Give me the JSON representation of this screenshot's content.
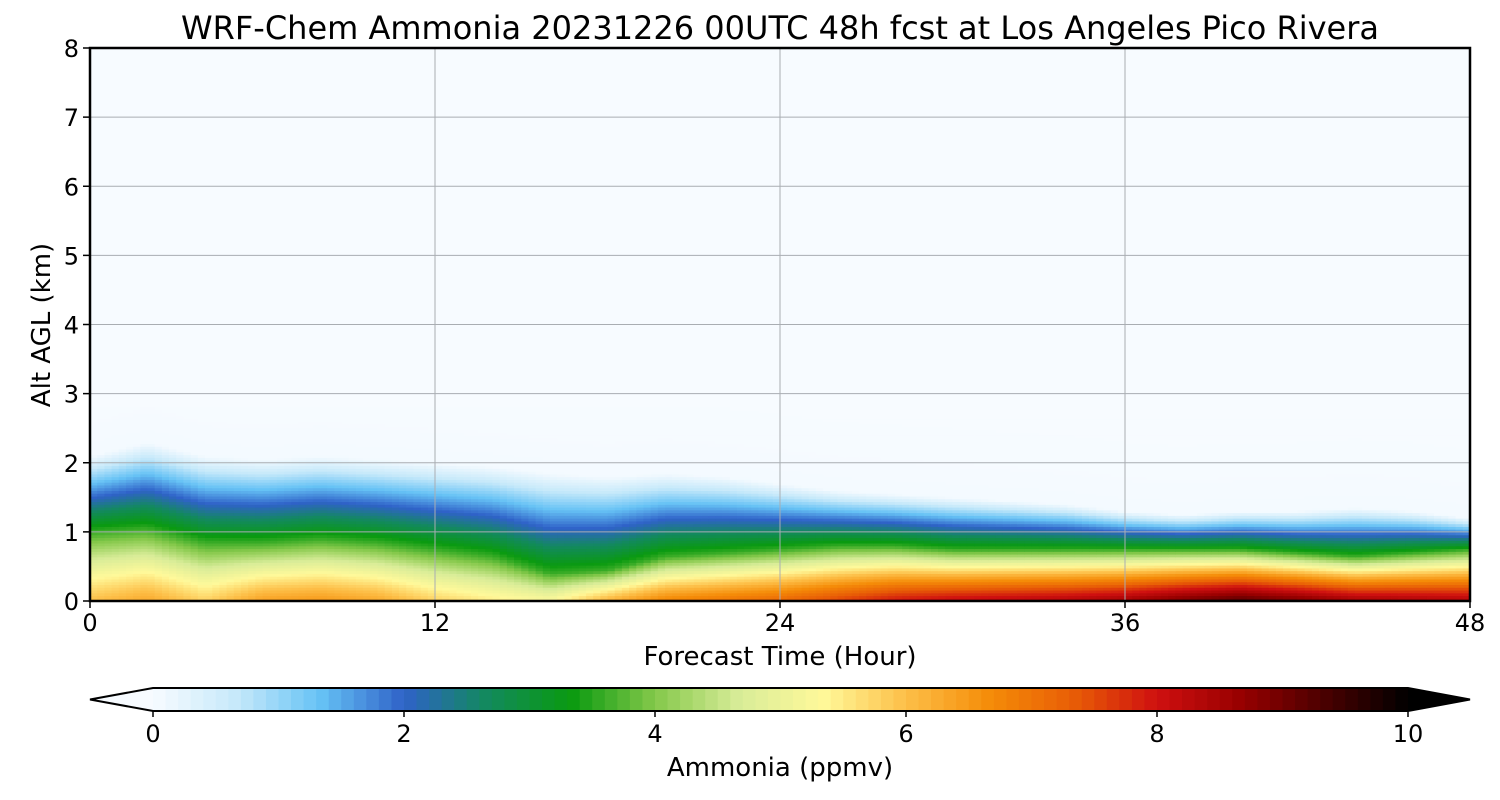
{
  "chart_data": {
    "type": "heatmap",
    "title": "WRF-Chem Ammonia  20231226 00UTC 48h fcst at Los Angeles Pico Rivera",
    "xlabel": "Forecast Time (Hour)",
    "ylabel": "Alt AGL (km)",
    "xlim": [
      0,
      48
    ],
    "ylim": [
      0,
      8
    ],
    "xticks": [
      0,
      12,
      24,
      36,
      48
    ],
    "yticks": [
      0,
      1,
      2,
      3,
      4,
      5,
      6,
      7,
      8
    ],
    "grid": true,
    "colorbar": {
      "label": "Ammonia  (ppmv)",
      "range": [
        0,
        10
      ],
      "ticks": [
        0,
        2,
        4,
        6,
        8,
        10
      ],
      "extend": "both",
      "colors": [
        "#f7fbff",
        "#c6e9fa",
        "#66c2f5",
        "#2f62c8",
        "#128a5c",
        "#0a9a10",
        "#84c84a",
        "#d8ec98",
        "#fff99a",
        "#fdbf48",
        "#f58c08",
        "#e85d06",
        "#cf1010",
        "#980000",
        "#4a0000",
        "#000000"
      ]
    },
    "profile_hours": [
      0,
      2,
      4,
      6,
      8,
      10,
      12,
      14,
      16,
      18,
      20,
      22,
      24,
      26,
      28,
      30,
      32,
      34,
      36,
      38,
      40,
      42,
      44,
      46,
      48
    ],
    "surface_ammonia_ppmv": [
      6.0,
      6.3,
      5.8,
      6.4,
      6.5,
      6.3,
      5.8,
      5.5,
      5.3,
      6.2,
      6.8,
      7.0,
      7.2,
      7.6,
      8.0,
      8.2,
      8.3,
      8.4,
      8.6,
      9.0,
      9.3,
      9.0,
      8.6,
      8.5,
      8.4
    ],
    "mixed_layer_top_km": [
      1.0,
      1.05,
      0.85,
      0.85,
      0.9,
      0.85,
      0.75,
      0.65,
      0.4,
      0.45,
      0.65,
      0.7,
      0.75,
      0.8,
      0.8,
      0.75,
      0.75,
      0.75,
      0.75,
      0.75,
      0.75,
      0.7,
      0.65,
      0.7,
      0.75
    ],
    "plume_top_km": [
      2.1,
      2.3,
      2.1,
      2.05,
      2.1,
      2.05,
      2.0,
      1.95,
      1.85,
      1.8,
      1.85,
      1.8,
      1.7,
      1.6,
      1.55,
      1.5,
      1.45,
      1.4,
      1.3,
      1.25,
      1.3,
      1.3,
      1.35,
      1.3,
      1.2
    ]
  }
}
